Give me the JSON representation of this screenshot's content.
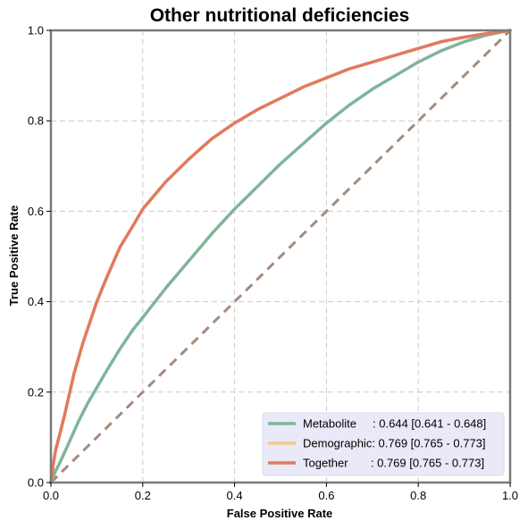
{
  "chart_data": {
    "type": "line",
    "title": "Other nutritional deficiencies",
    "xlabel": "False Positive Rate",
    "ylabel": "True Positive Rate",
    "xlim": [
      0.0,
      1.0
    ],
    "ylim": [
      0.0,
      1.0
    ],
    "xticks": [
      "0.0",
      "0.2",
      "0.4",
      "0.6",
      "0.8",
      "1.0"
    ],
    "yticks": [
      "0.0",
      "0.2",
      "0.4",
      "0.6",
      "0.8",
      "1.0"
    ],
    "grid": true,
    "legend_position": "lower-right",
    "diagonal": {
      "x": [
        0,
        1
      ],
      "y": [
        0,
        1
      ],
      "color": "#a68a7b",
      "style": "dashed"
    },
    "series": [
      {
        "name": "Metabolite",
        "legend_label": "Metabolite     : 0.644 [0.641 - 0.648]",
        "color": "#7fb59a",
        "x": [
          0,
          0.01,
          0.02,
          0.04,
          0.06,
          0.08,
          0.1,
          0.12,
          0.15,
          0.18,
          0.2,
          0.25,
          0.3,
          0.35,
          0.4,
          0.45,
          0.5,
          0.55,
          0.6,
          0.65,
          0.7,
          0.75,
          0.8,
          0.85,
          0.9,
          0.95,
          1.0
        ],
        "y": [
          0,
          0.025,
          0.045,
          0.09,
          0.135,
          0.175,
          0.21,
          0.245,
          0.295,
          0.34,
          0.365,
          0.43,
          0.49,
          0.55,
          0.605,
          0.655,
          0.705,
          0.75,
          0.795,
          0.835,
          0.87,
          0.9,
          0.93,
          0.955,
          0.975,
          0.99,
          1.0
        ]
      },
      {
        "name": "Demographic",
        "legend_label": "Demographic: 0.769 [0.765 - 0.773]",
        "color": "#f5c98a",
        "x": [
          0,
          0.005,
          0.01,
          0.02,
          0.03,
          0.05,
          0.07,
          0.1,
          0.12,
          0.15,
          0.18,
          0.2,
          0.25,
          0.3,
          0.35,
          0.4,
          0.45,
          0.5,
          0.55,
          0.6,
          0.65,
          0.7,
          0.75,
          0.8,
          0.85,
          0.9,
          0.95,
          1.0
        ],
        "y": [
          0,
          0.04,
          0.07,
          0.11,
          0.15,
          0.24,
          0.31,
          0.4,
          0.45,
          0.52,
          0.57,
          0.605,
          0.665,
          0.715,
          0.76,
          0.795,
          0.825,
          0.85,
          0.875,
          0.895,
          0.915,
          0.93,
          0.945,
          0.96,
          0.975,
          0.985,
          0.993,
          1.0
        ]
      },
      {
        "name": "Together",
        "legend_label": "Together       : 0.769 [0.765 - 0.773]",
        "color": "#e07b5f",
        "x": [
          0,
          0.005,
          0.01,
          0.02,
          0.03,
          0.05,
          0.07,
          0.1,
          0.12,
          0.15,
          0.18,
          0.2,
          0.25,
          0.3,
          0.35,
          0.4,
          0.45,
          0.5,
          0.55,
          0.6,
          0.65,
          0.7,
          0.75,
          0.8,
          0.85,
          0.9,
          0.95,
          1.0
        ],
        "y": [
          0,
          0.04,
          0.07,
          0.11,
          0.15,
          0.24,
          0.31,
          0.4,
          0.45,
          0.52,
          0.57,
          0.605,
          0.665,
          0.715,
          0.76,
          0.795,
          0.825,
          0.85,
          0.875,
          0.895,
          0.915,
          0.93,
          0.945,
          0.96,
          0.975,
          0.985,
          0.993,
          1.0
        ]
      }
    ]
  }
}
